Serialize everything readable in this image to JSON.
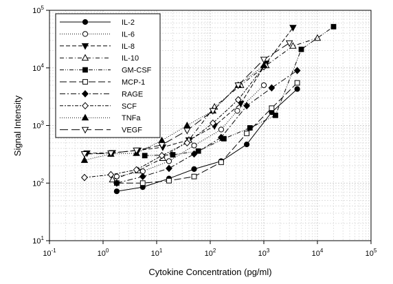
{
  "chart_data": {
    "type": "scatter",
    "title": "",
    "xlabel": "Cytokine Concentration (pg/ml)",
    "ylabel": "Signal Intensity",
    "x_scale": "log",
    "y_scale": "log",
    "xlim": [
      0.1,
      100000
    ],
    "ylim": [
      10,
      100000
    ],
    "x_ticks": [
      {
        "value": 0.1,
        "base": "10",
        "exp": "-1"
      },
      {
        "value": 1,
        "base": "10",
        "exp": "0"
      },
      {
        "value": 10,
        "base": "10",
        "exp": "1"
      },
      {
        "value": 100,
        "base": "10",
        "exp": "2"
      },
      {
        "value": 1000,
        "base": "10",
        "exp": "3"
      },
      {
        "value": 10000,
        "base": "10",
        "exp": "4"
      },
      {
        "value": 100000,
        "base": "10",
        "exp": "5"
      }
    ],
    "y_ticks": [
      {
        "value": 10,
        "base": "10",
        "exp": "1"
      },
      {
        "value": 100,
        "base": "10",
        "exp": "2"
      },
      {
        "value": 1000,
        "base": "10",
        "exp": "3"
      },
      {
        "value": 10000,
        "base": "10",
        "exp": "4"
      },
      {
        "value": 100000,
        "base": "10",
        "exp": "5"
      }
    ],
    "grid": true,
    "legend_position": "top-left",
    "series": [
      {
        "name": "IL-2",
        "marker": "circle",
        "filled": true,
        "dash": "solid",
        "x": [
          1.8,
          5.5,
          17,
          50,
          160,
          480,
          1400,
          4200
        ],
        "y": [
          72,
          85,
          120,
          175,
          240,
          470,
          1700,
          4300
        ]
      },
      {
        "name": "IL-6",
        "marker": "circle",
        "filled": false,
        "dash": "dot",
        "x": [
          1.8,
          5.5,
          17,
          50,
          160,
          320,
          1000
        ],
        "y": [
          130,
          160,
          240,
          450,
          850,
          1800,
          5000
        ]
      },
      {
        "name": "IL-8",
        "marker": "triangle-down",
        "filled": true,
        "dash": "dash",
        "x": [
          0.5,
          1.5,
          4.5,
          13,
          40,
          120,
          370,
          1100,
          3500
        ],
        "y": [
          330,
          335,
          370,
          420,
          560,
          980,
          2400,
          12000,
          50000
        ]
      },
      {
        "name": "IL-10",
        "marker": "triangle-up",
        "filled": false,
        "dash": "dashdot",
        "x": [
          1.5,
          4.5,
          13,
          40,
          120,
          370,
          1100,
          3500,
          10000
        ],
        "y": [
          115,
          165,
          270,
          560,
          2100,
          5000,
          11000,
          24000,
          33000
        ]
      },
      {
        "name": "GM-CSF",
        "marker": "square",
        "filled": true,
        "dash": "dashdotdot",
        "x": [
          6,
          20,
          60,
          180,
          550,
          1650,
          5000,
          20000
        ],
        "y": [
          300,
          310,
          360,
          590,
          910,
          1500,
          21000,
          52000
        ]
      },
      {
        "name": "MCP-1",
        "marker": "square",
        "filled": false,
        "dash": "longdash",
        "x": [
          1.8,
          5.5,
          17,
          50,
          160,
          480,
          1400,
          4200
        ],
        "y": [
          100,
          100,
          110,
          130,
          230,
          730,
          2000,
          5500
        ]
      },
      {
        "name": "RAGE",
        "marker": "diamond",
        "filled": true,
        "dash": "dashdot2",
        "x": [
          1.8,
          5.5,
          17,
          50,
          160,
          480,
          1400,
          4200
        ],
        "y": [
          100,
          130,
          180,
          320,
          620,
          2200,
          4500,
          9000
        ]
      },
      {
        "name": "SCF",
        "marker": "diamond",
        "filled": false,
        "dash": "dashdot3",
        "x": [
          0.45,
          1.4,
          4.2,
          12.5,
          37,
          112,
          333,
          1000
        ],
        "y": [
          125,
          140,
          170,
          300,
          500,
          1100,
          2800,
          10500
        ]
      },
      {
        "name": "TNFa",
        "marker": "triangle-up",
        "filled": true,
        "dash": "dot",
        "x": [
          0.45,
          1.4,
          4.2,
          12.5,
          37,
          112,
          333,
          1000
        ],
        "y": [
          250,
          320,
          330,
          550,
          1000,
          1800,
          5000,
          11000
        ]
      },
      {
        "name": "VEGF",
        "marker": "triangle-down",
        "filled": false,
        "dash": "longdash2",
        "x": [
          0.45,
          1.4,
          4.2,
          12.5,
          37,
          112,
          333,
          1000,
          3000
        ],
        "y": [
          320,
          330,
          370,
          460,
          820,
          1800,
          5000,
          14000,
          27000
        ]
      }
    ]
  }
}
